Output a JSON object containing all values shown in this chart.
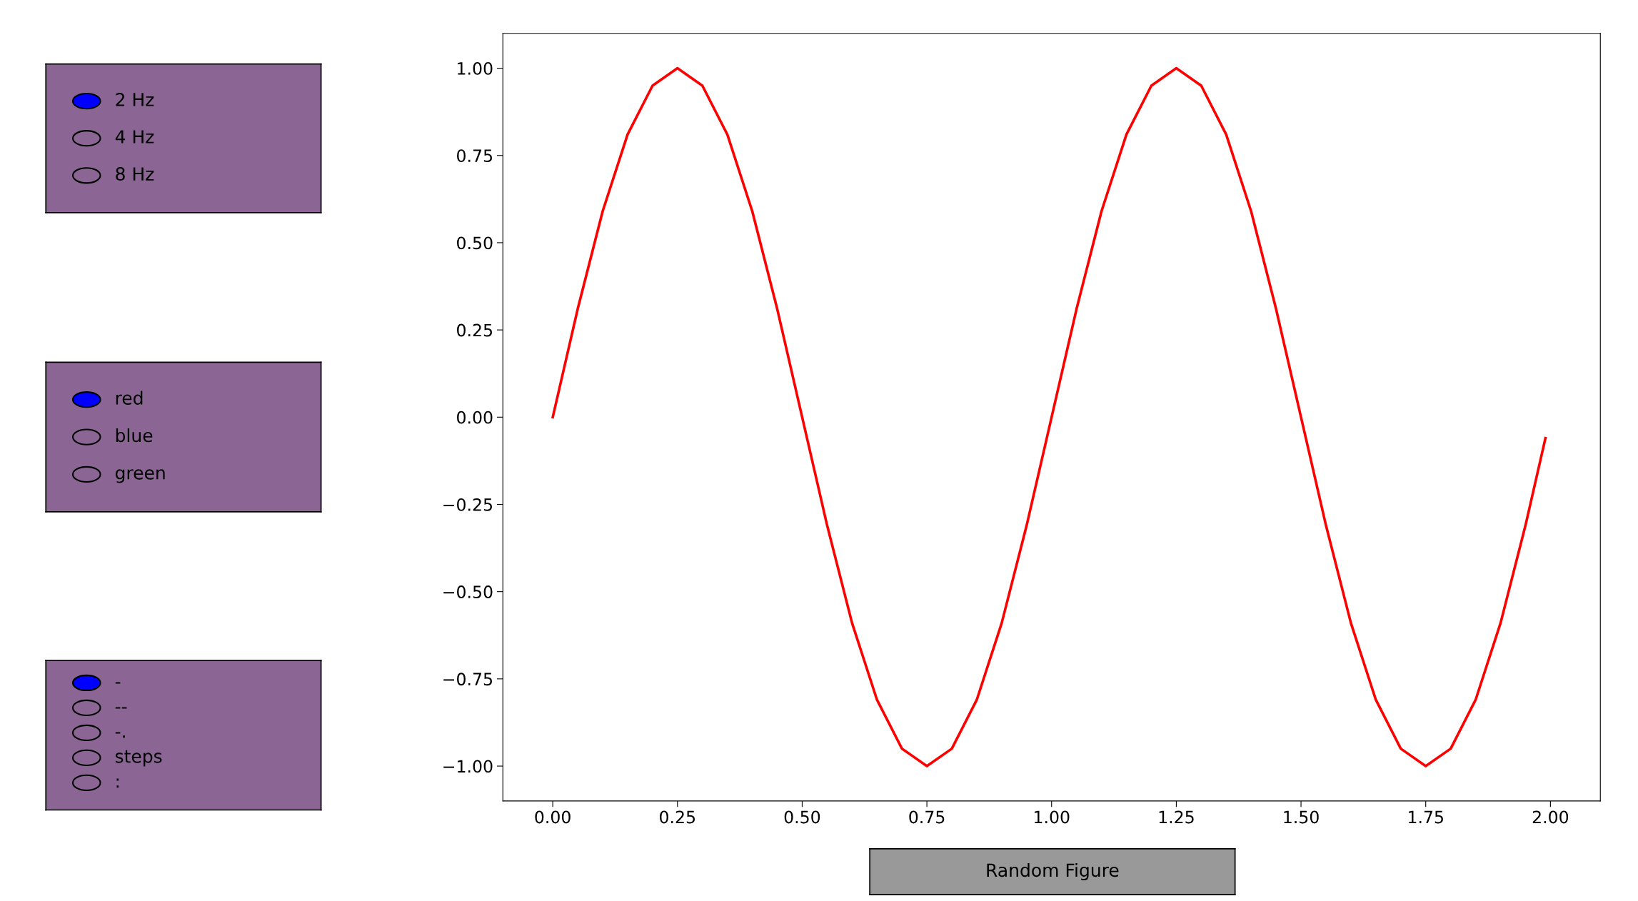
{
  "chart_data": [
    {
      "type": "line",
      "x": [
        0,
        0.05,
        0.1,
        0.15,
        0.2,
        0.25,
        0.3,
        0.35,
        0.4,
        0.45,
        0.5,
        0.55,
        0.6,
        0.65,
        0.7,
        0.75,
        0.8,
        0.85,
        0.9,
        0.95,
        1.0,
        1.05,
        1.1,
        1.15,
        1.2,
        1.25,
        1.3,
        1.35,
        1.4,
        1.45,
        1.5,
        1.55,
        1.6,
        1.65,
        1.7,
        1.75,
        1.8,
        1.85,
        1.9,
        1.95,
        1.99
      ],
      "series": [
        {
          "color": "#ff0000",
          "values": [
            0,
            0.31,
            0.59,
            0.81,
            0.95,
            1.0,
            0.95,
            0.81,
            0.59,
            0.31,
            0,
            -0.31,
            -0.59,
            -0.81,
            -0.95,
            -1.0,
            -0.95,
            -0.81,
            -0.59,
            -0.31,
            0,
            0.31,
            0.59,
            0.81,
            0.95,
            1.0,
            0.95,
            0.81,
            0.59,
            0.31,
            0,
            -0.31,
            -0.59,
            -0.81,
            -0.95,
            -1.0,
            -0.95,
            -0.81,
            -0.59,
            -0.31,
            -0.06
          ]
        }
      ],
      "xlim": [
        -0.1,
        2.1
      ],
      "ylim": [
        -1.1,
        1.1
      ],
      "xticks": [
        {
          "value": 0,
          "label": "0.00"
        },
        {
          "value": 0.25,
          "label": "0.25"
        },
        {
          "value": 0.5,
          "label": "0.50"
        },
        {
          "value": 0.75,
          "label": "0.75"
        },
        {
          "value": 1,
          "label": "1.00"
        },
        {
          "value": 1.25,
          "label": "1.25"
        },
        {
          "value": 1.5,
          "label": "1.50"
        },
        {
          "value": 1.75,
          "label": "1.75"
        },
        {
          "value": 2,
          "label": "2.00"
        }
      ],
      "yticks": [
        {
          "value": -1,
          "label": "−1.00"
        },
        {
          "value": -0.75,
          "label": "−0.75"
        },
        {
          "value": -0.5,
          "label": "−0.50"
        },
        {
          "value": -0.25,
          "label": "−0.25"
        },
        {
          "value": 0,
          "label": "0.00"
        },
        {
          "value": 0.25,
          "label": "0.25"
        },
        {
          "value": 0.5,
          "label": "0.50"
        },
        {
          "value": 0.75,
          "label": "0.75"
        },
        {
          "value": 1,
          "label": "1.00"
        }
      ],
      "line_style": "solid",
      "grid": false,
      "legend": false
    },
    {
      "type": "other",
      "annotations": [
        "2 Hz",
        "4 Hz",
        "8 Hz"
      ]
    },
    {
      "type": "other",
      "annotations": [
        "red",
        "blue",
        "green"
      ]
    },
    {
      "type": "other",
      "annotations": [
        "-",
        "--",
        "-.",
        "steps",
        ":"
      ]
    },
    {
      "type": "other",
      "annotations": [
        "Random Figure"
      ]
    }
  ]
}
